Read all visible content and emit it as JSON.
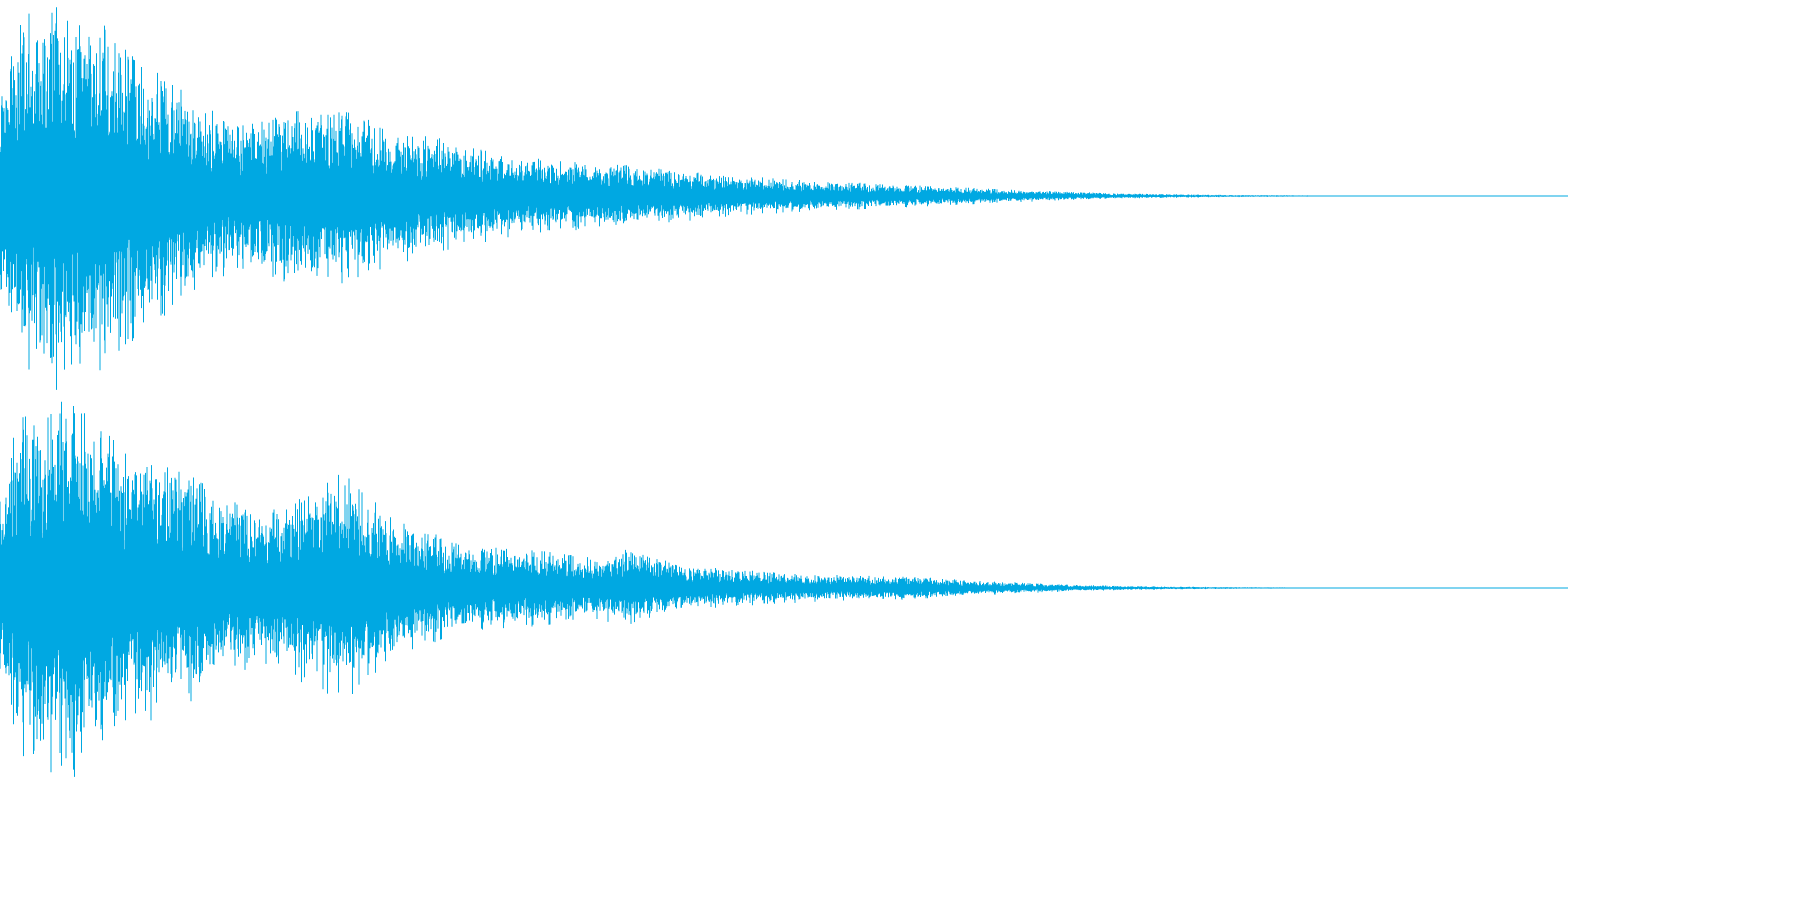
{
  "waveform": {
    "color": "#00a8e2",
    "background": "#ffffff",
    "channels": [
      {
        "name": "left-channel",
        "envelope": [
          [
            0.0,
            0.62
          ],
          [
            0.01,
            0.9
          ],
          [
            0.03,
            1.0
          ],
          [
            0.05,
            1.0
          ],
          [
            0.06,
            0.95
          ],
          [
            0.08,
            0.78
          ],
          [
            0.1,
            0.65
          ],
          [
            0.12,
            0.52
          ],
          [
            0.14,
            0.42
          ],
          [
            0.16,
            0.38
          ],
          [
            0.19,
            0.47
          ],
          [
            0.22,
            0.46
          ],
          [
            0.25,
            0.36
          ],
          [
            0.28,
            0.3
          ],
          [
            0.32,
            0.22
          ],
          [
            0.36,
            0.18
          ],
          [
            0.4,
            0.16
          ],
          [
            0.44,
            0.13
          ],
          [
            0.48,
            0.1
          ],
          [
            0.52,
            0.08
          ],
          [
            0.56,
            0.065
          ],
          [
            0.6,
            0.05
          ],
          [
            0.64,
            0.035
          ],
          [
            0.68,
            0.022
          ],
          [
            0.72,
            0.013
          ],
          [
            0.76,
            0.008
          ],
          [
            0.8,
            0.005
          ],
          [
            0.84,
            0.003
          ],
          [
            0.86,
            0.001
          ],
          [
            0.88,
            0.0
          ],
          [
            1.0,
            0.0
          ]
        ]
      },
      {
        "name": "right-channel",
        "envelope": [
          [
            0.0,
            0.48
          ],
          [
            0.01,
            0.88
          ],
          [
            0.03,
            1.0
          ],
          [
            0.05,
            1.0
          ],
          [
            0.06,
            0.9
          ],
          [
            0.08,
            0.72
          ],
          [
            0.1,
            0.68
          ],
          [
            0.12,
            0.6
          ],
          [
            0.14,
            0.48
          ],
          [
            0.17,
            0.4
          ],
          [
            0.2,
            0.55
          ],
          [
            0.22,
            0.6
          ],
          [
            0.24,
            0.45
          ],
          [
            0.27,
            0.3
          ],
          [
            0.3,
            0.22
          ],
          [
            0.34,
            0.2
          ],
          [
            0.38,
            0.16
          ],
          [
            0.4,
            0.2
          ],
          [
            0.43,
            0.13
          ],
          [
            0.46,
            0.1
          ],
          [
            0.5,
            0.08
          ],
          [
            0.54,
            0.065
          ],
          [
            0.58,
            0.06
          ],
          [
            0.62,
            0.04
          ],
          [
            0.66,
            0.025
          ],
          [
            0.7,
            0.014
          ],
          [
            0.74,
            0.008
          ],
          [
            0.78,
            0.005
          ],
          [
            0.82,
            0.003
          ],
          [
            0.84,
            0.001
          ],
          [
            0.86,
            0.0
          ],
          [
            1.0,
            0.0
          ]
        ]
      }
    ]
  }
}
